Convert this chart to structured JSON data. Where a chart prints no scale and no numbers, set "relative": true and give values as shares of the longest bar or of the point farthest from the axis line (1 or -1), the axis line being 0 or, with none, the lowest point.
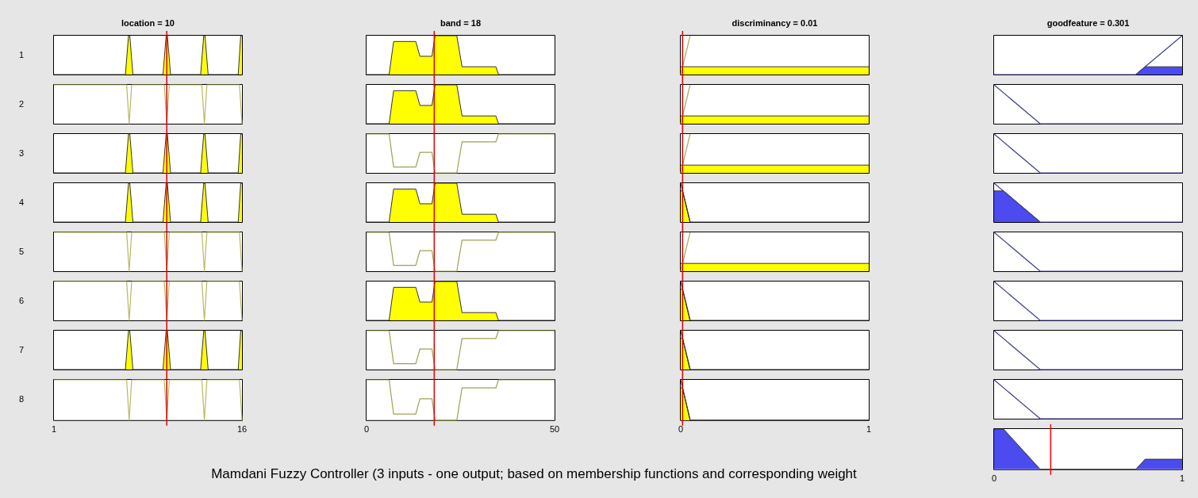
{
  "chart_data": [
    {
      "type": "area",
      "title": "location = 10",
      "ylabel": "1",
      "relative": true,
      "xlim": [
        1,
        16
      ],
      "xticks": [
        1,
        16
      ],
      "tick_labels": false,
      "ref_lines": [
        {
          "axis": "x",
          "value": 10,
          "color": "#e00000"
        }
      ],
      "series": [
        {
          "type": "area",
          "color": "#ffff00",
          "x": [
            1,
            6.7,
            6.95,
            7.05,
            7.3,
            9.7,
            9.95,
            10.05,
            10.3,
            12.7,
            12.95,
            13.05,
            13.3,
            15.7,
            15.9,
            16
          ],
          "values": [
            0,
            0,
            1,
            1,
            0,
            0,
            1,
            1,
            0,
            0,
            1,
            1,
            0,
            0,
            1,
            1
          ]
        }
      ]
    },
    {
      "type": "area",
      "title": "band = 18",
      "relative": true,
      "xlim": [
        0,
        50
      ],
      "xticks": [
        0,
        50
      ],
      "tick_labels": false,
      "ref_lines": [
        {
          "axis": "x",
          "value": 18,
          "color": "#e00000"
        }
      ],
      "series": [
        {
          "type": "area",
          "color": "#ffff00",
          "x": [
            0,
            6,
            7.2,
            13.1,
            14.2,
            17.4,
            18.2,
            24,
            25.4,
            34.4,
            35.1,
            50
          ],
          "values": [
            0,
            0,
            0.85,
            0.85,
            0.47,
            0.47,
            1,
            1,
            0.2,
            0.2,
            0,
            0
          ]
        }
      ]
    },
    {
      "type": "area",
      "title": "discriminancy = 0.01",
      "relative": true,
      "xlim": [
        0,
        1
      ],
      "xticks": [
        0,
        1
      ],
      "tick_labels": false,
      "ref_lines": [
        {
          "axis": "x",
          "value": 0.01,
          "color": "#e00000"
        }
      ],
      "series": [
        {
          "type": "area",
          "color": "#ffff00",
          "x": [
            0,
            1
          ],
          "values": [
            0.2,
            0.2
          ]
        },
        {
          "type": "line",
          "color": "#b0a860",
          "x": [
            0,
            0.05
          ],
          "values": [
            0,
            1
          ]
        }
      ]
    },
    {
      "type": "area",
      "title": "goodfeature = 0.301",
      "relative": true,
      "xlim": [
        0,
        1
      ],
      "xticks": [
        0,
        1
      ],
      "tick_labels": false,
      "series": [
        {
          "type": "line",
          "color": "#404090",
          "x": [
            0,
            0.754,
            1
          ],
          "values": [
            0,
            0,
            1
          ]
        },
        {
          "type": "area",
          "color": "#4b4bf0",
          "x": [
            0.754,
            0.803,
            1
          ],
          "values": [
            0,
            0.2,
            0.2
          ]
        }
      ]
    },
    {
      "type": "area",
      "ylabel": "2",
      "relative": true,
      "xlim": [
        1,
        16
      ],
      "xticks": [
        1,
        16
      ],
      "tick_labels": false,
      "ref_lines": [
        {
          "axis": "x",
          "value": 10,
          "color": "#e00000"
        }
      ],
      "series": [
        {
          "type": "line",
          "color": "#b8b860",
          "x": [
            1,
            6.8,
            7,
            7.2,
            9.8,
            10,
            10.2,
            12.8,
            13,
            13.2,
            15.8,
            16
          ],
          "values": [
            1,
            1,
            0,
            1,
            1,
            0,
            1,
            1,
            0,
            1,
            1,
            0
          ]
        }
      ]
    },
    {
      "type": "area",
      "relative": true,
      "xlim": [
        0,
        50
      ],
      "xticks": [
        0,
        50
      ],
      "tick_labels": false,
      "ref_lines": [
        {
          "axis": "x",
          "value": 18,
          "color": "#e00000"
        }
      ],
      "series": [
        {
          "type": "area",
          "color": "#ffff00",
          "x": [
            0,
            6,
            7.2,
            13.1,
            14.2,
            17.4,
            18.2,
            24,
            25.4,
            34.4,
            35.1,
            50
          ],
          "values": [
            0,
            0,
            0.85,
            0.85,
            0.47,
            0.47,
            1,
            1,
            0.2,
            0.2,
            0,
            0
          ]
        }
      ]
    },
    {
      "type": "area",
      "relative": true,
      "xlim": [
        0,
        1
      ],
      "xticks": [
        0,
        1
      ],
      "tick_labels": false,
      "ref_lines": [
        {
          "axis": "x",
          "value": 0.01,
          "color": "#e00000"
        }
      ],
      "series": [
        {
          "type": "area",
          "color": "#ffff00",
          "x": [
            0,
            1
          ],
          "values": [
            0.2,
            0.2
          ]
        },
        {
          "type": "line",
          "color": "#b0a860",
          "x": [
            0,
            0.05
          ],
          "values": [
            0,
            1
          ]
        }
      ]
    },
    {
      "type": "area",
      "relative": true,
      "xlim": [
        0,
        1
      ],
      "xticks": [
        0,
        1
      ],
      "tick_labels": false,
      "series": [
        {
          "type": "line",
          "color": "#404090",
          "x": [
            0,
            0.245,
            1
          ],
          "values": [
            1,
            0,
            0
          ]
        }
      ]
    },
    {
      "type": "area",
      "ylabel": "3",
      "relative": true,
      "xlim": [
        1,
        16
      ],
      "xticks": [
        1,
        16
      ],
      "tick_labels": false,
      "ref_lines": [
        {
          "axis": "x",
          "value": 10,
          "color": "#e00000"
        }
      ],
      "series": [
        {
          "type": "area",
          "color": "#ffff00",
          "x": [
            1,
            6.7,
            6.95,
            7.05,
            7.3,
            9.7,
            9.95,
            10.05,
            10.3,
            12.7,
            12.95,
            13.05,
            13.3,
            15.7,
            15.9,
            16
          ],
          "values": [
            0,
            0,
            1,
            1,
            0,
            0,
            1,
            1,
            0,
            0,
            1,
            1,
            0,
            0,
            1,
            1
          ]
        }
      ]
    },
    {
      "type": "area",
      "relative": true,
      "xlim": [
        0,
        50
      ],
      "xticks": [
        0,
        50
      ],
      "tick_labels": false,
      "ref_lines": [
        {
          "axis": "x",
          "value": 18,
          "color": "#e00000"
        }
      ],
      "series": [
        {
          "type": "line",
          "color": "#a0a050",
          "x": [
            0,
            6,
            7.2,
            13.1,
            14.2,
            17.4,
            18.2,
            24,
            25.4,
            34.4,
            35.1,
            50
          ],
          "values": [
            1,
            1,
            0.15,
            0.15,
            0.53,
            0.53,
            0,
            0,
            0.8,
            0.8,
            1,
            1
          ]
        }
      ]
    },
    {
      "type": "area",
      "relative": true,
      "xlim": [
        0,
        1
      ],
      "xticks": [
        0,
        1
      ],
      "tick_labels": false,
      "ref_lines": [
        {
          "axis": "x",
          "value": 0.01,
          "color": "#e00000"
        }
      ],
      "series": [
        {
          "type": "area",
          "color": "#ffff00",
          "x": [
            0,
            1
          ],
          "values": [
            0.2,
            0.2
          ]
        },
        {
          "type": "line",
          "color": "#b0a860",
          "x": [
            0,
            0.05
          ],
          "values": [
            0,
            1
          ]
        }
      ]
    },
    {
      "type": "area",
      "relative": true,
      "xlim": [
        0,
        1
      ],
      "xticks": [
        0,
        1
      ],
      "tick_labels": false,
      "series": [
        {
          "type": "line",
          "color": "#404090",
          "x": [
            0,
            0.245,
            1
          ],
          "values": [
            1,
            0,
            0
          ]
        }
      ]
    },
    {
      "type": "area",
      "ylabel": "4",
      "relative": true,
      "xlim": [
        1,
        16
      ],
      "xticks": [
        1,
        16
      ],
      "tick_labels": false,
      "ref_lines": [
        {
          "axis": "x",
          "value": 10,
          "color": "#e00000"
        }
      ],
      "series": [
        {
          "type": "area",
          "color": "#ffff00",
          "x": [
            1,
            6.7,
            6.95,
            7.05,
            7.3,
            9.7,
            9.95,
            10.05,
            10.3,
            12.7,
            12.95,
            13.05,
            13.3,
            15.7,
            15.9,
            16
          ],
          "values": [
            0,
            0,
            1,
            1,
            0,
            0,
            1,
            1,
            0,
            0,
            1,
            1,
            0,
            0,
            1,
            1
          ]
        }
      ]
    },
    {
      "type": "area",
      "relative": true,
      "xlim": [
        0,
        50
      ],
      "xticks": [
        0,
        50
      ],
      "tick_labels": false,
      "ref_lines": [
        {
          "axis": "x",
          "value": 18,
          "color": "#e00000"
        }
      ],
      "series": [
        {
          "type": "area",
          "color": "#ffff00",
          "x": [
            0,
            6,
            7.2,
            13.1,
            14.2,
            17.4,
            18.2,
            24,
            25.4,
            34.4,
            35.1,
            50
          ],
          "values": [
            0,
            0,
            0.85,
            0.85,
            0.47,
            0.47,
            1,
            1,
            0.2,
            0.2,
            0,
            0
          ]
        }
      ]
    },
    {
      "type": "area",
      "relative": true,
      "xlim": [
        0,
        1
      ],
      "xticks": [
        0,
        1
      ],
      "tick_labels": false,
      "ref_lines": [
        {
          "axis": "x",
          "value": 0.01,
          "color": "#e00000"
        }
      ],
      "series": [
        {
          "type": "line",
          "color": "#303030",
          "x": [
            0,
            0.05,
            1
          ],
          "values": [
            1,
            0,
            0
          ]
        },
        {
          "type": "area",
          "color": "#ffff00",
          "x": [
            0,
            0.01,
            0.05
          ],
          "values": [
            0.8,
            0.8,
            0
          ]
        }
      ]
    },
    {
      "type": "area",
      "relative": true,
      "xlim": [
        0,
        1
      ],
      "xticks": [
        0,
        1
      ],
      "tick_labels": false,
      "series": [
        {
          "type": "line",
          "color": "#404090",
          "x": [
            0,
            0.245,
            1
          ],
          "values": [
            1,
            0,
            0
          ]
        },
        {
          "type": "area",
          "color": "#4b4bf0",
          "x": [
            0,
            0.05,
            0.245
          ],
          "values": [
            0.8,
            0.8,
            0
          ]
        }
      ]
    },
    {
      "type": "area",
      "ylabel": "5",
      "relative": true,
      "xlim": [
        1,
        16
      ],
      "xticks": [
        1,
        16
      ],
      "tick_labels": false,
      "ref_lines": [
        {
          "axis": "x",
          "value": 10,
          "color": "#e00000"
        }
      ],
      "series": [
        {
          "type": "line",
          "color": "#b8b860",
          "x": [
            1,
            6.8,
            7,
            7.2,
            9.8,
            10,
            10.2,
            12.8,
            13,
            13.2,
            15.8,
            16
          ],
          "values": [
            1,
            1,
            0,
            1,
            1,
            0,
            1,
            1,
            0,
            1,
            1,
            0
          ]
        }
      ]
    },
    {
      "type": "area",
      "relative": true,
      "xlim": [
        0,
        50
      ],
      "xticks": [
        0,
        50
      ],
      "tick_labels": false,
      "ref_lines": [
        {
          "axis": "x",
          "value": 18,
          "color": "#e00000"
        }
      ],
      "series": [
        {
          "type": "line",
          "color": "#a0a050",
          "x": [
            0,
            6,
            7.2,
            13.1,
            14.2,
            17.4,
            18.2,
            24,
            25.4,
            34.4,
            35.1,
            50
          ],
          "values": [
            1,
            1,
            0.15,
            0.15,
            0.53,
            0.53,
            0,
            0,
            0.8,
            0.8,
            1,
            1
          ]
        }
      ]
    },
    {
      "type": "area",
      "relative": true,
      "xlim": [
        0,
        1
      ],
      "xticks": [
        0,
        1
      ],
      "tick_labels": false,
      "ref_lines": [
        {
          "axis": "x",
          "value": 0.01,
          "color": "#e00000"
        }
      ],
      "series": [
        {
          "type": "area",
          "color": "#ffff00",
          "x": [
            0,
            1
          ],
          "values": [
            0.2,
            0.2
          ]
        },
        {
          "type": "line",
          "color": "#b0a860",
          "x": [
            0,
            0.05
          ],
          "values": [
            0,
            1
          ]
        }
      ]
    },
    {
      "type": "area",
      "relative": true,
      "xlim": [
        0,
        1
      ],
      "xticks": [
        0,
        1
      ],
      "tick_labels": false,
      "series": [
        {
          "type": "line",
          "color": "#404090",
          "x": [
            0,
            0.245,
            1
          ],
          "values": [
            1,
            0,
            0
          ]
        }
      ]
    },
    {
      "type": "area",
      "ylabel": "6",
      "relative": true,
      "xlim": [
        1,
        16
      ],
      "xticks": [
        1,
        16
      ],
      "tick_labels": false,
      "ref_lines": [
        {
          "axis": "x",
          "value": 10,
          "color": "#e00000"
        }
      ],
      "series": [
        {
          "type": "line",
          "color": "#b8b860",
          "x": [
            1,
            6.8,
            7,
            7.2,
            9.8,
            10,
            10.2,
            12.8,
            13,
            13.2,
            15.8,
            16
          ],
          "values": [
            1,
            1,
            0,
            1,
            1,
            0,
            1,
            1,
            0,
            1,
            1,
            0
          ]
        }
      ]
    },
    {
      "type": "area",
      "relative": true,
      "xlim": [
        0,
        50
      ],
      "xticks": [
        0,
        50
      ],
      "tick_labels": false,
      "ref_lines": [
        {
          "axis": "x",
          "value": 18,
          "color": "#e00000"
        }
      ],
      "series": [
        {
          "type": "area",
          "color": "#ffff00",
          "x": [
            0,
            6,
            7.2,
            13.1,
            14.2,
            17.4,
            18.2,
            24,
            25.4,
            34.4,
            35.1,
            50
          ],
          "values": [
            0,
            0,
            0.85,
            0.85,
            0.47,
            0.47,
            1,
            1,
            0.2,
            0.2,
            0,
            0
          ]
        }
      ]
    },
    {
      "type": "area",
      "relative": true,
      "xlim": [
        0,
        1
      ],
      "xticks": [
        0,
        1
      ],
      "tick_labels": false,
      "ref_lines": [
        {
          "axis": "x",
          "value": 0.01,
          "color": "#e00000"
        }
      ],
      "series": [
        {
          "type": "line",
          "color": "#303030",
          "x": [
            0,
            0.05,
            1
          ],
          "values": [
            1,
            0,
            0
          ]
        },
        {
          "type": "area",
          "color": "#ffff00",
          "x": [
            0,
            0.01,
            0.05
          ],
          "values": [
            0.8,
            0.8,
            0
          ]
        }
      ]
    },
    {
      "type": "area",
      "relative": true,
      "xlim": [
        0,
        1
      ],
      "xticks": [
        0,
        1
      ],
      "tick_labels": false,
      "series": [
        {
          "type": "line",
          "color": "#404090",
          "x": [
            0,
            0.245,
            1
          ],
          "values": [
            1,
            0,
            0
          ]
        }
      ]
    },
    {
      "type": "area",
      "ylabel": "7",
      "relative": true,
      "xlim": [
        1,
        16
      ],
      "xticks": [
        1,
        16
      ],
      "tick_labels": false,
      "ref_lines": [
        {
          "axis": "x",
          "value": 10,
          "color": "#e00000"
        }
      ],
      "series": [
        {
          "type": "area",
          "color": "#ffff00",
          "x": [
            1,
            6.7,
            6.95,
            7.05,
            7.3,
            9.7,
            9.95,
            10.05,
            10.3,
            12.7,
            12.95,
            13.05,
            13.3,
            15.7,
            15.9,
            16
          ],
          "values": [
            0,
            0,
            1,
            1,
            0,
            0,
            1,
            1,
            0,
            0,
            1,
            1,
            0,
            0,
            1,
            1
          ]
        }
      ]
    },
    {
      "type": "area",
      "relative": true,
      "xlim": [
        0,
        50
      ],
      "xticks": [
        0,
        50
      ],
      "tick_labels": false,
      "ref_lines": [
        {
          "axis": "x",
          "value": 18,
          "color": "#e00000"
        }
      ],
      "series": [
        {
          "type": "line",
          "color": "#a0a050",
          "x": [
            0,
            6,
            7.2,
            13.1,
            14.2,
            17.4,
            18.2,
            24,
            25.4,
            34.4,
            35.1,
            50
          ],
          "values": [
            1,
            1,
            0.15,
            0.15,
            0.53,
            0.53,
            0,
            0,
            0.8,
            0.8,
            1,
            1
          ]
        }
      ]
    },
    {
      "type": "area",
      "relative": true,
      "xlim": [
        0,
        1
      ],
      "xticks": [
        0,
        1
      ],
      "tick_labels": false,
      "ref_lines": [
        {
          "axis": "x",
          "value": 0.01,
          "color": "#e00000"
        }
      ],
      "series": [
        {
          "type": "line",
          "color": "#303030",
          "x": [
            0,
            0.05,
            1
          ],
          "values": [
            1,
            0,
            0
          ]
        },
        {
          "type": "area",
          "color": "#ffff00",
          "x": [
            0,
            0.01,
            0.05
          ],
          "values": [
            0.8,
            0.8,
            0
          ]
        }
      ]
    },
    {
      "type": "area",
      "relative": true,
      "xlim": [
        0,
        1
      ],
      "xticks": [
        0,
        1
      ],
      "tick_labels": false,
      "series": [
        {
          "type": "line",
          "color": "#404090",
          "x": [
            0,
            0.245,
            1
          ],
          "values": [
            1,
            0,
            0
          ]
        }
      ]
    },
    {
      "type": "area",
      "ylabel": "8",
      "relative": true,
      "xlim": [
        1,
        16
      ],
      "xticks": [
        1,
        16
      ],
      "tick_labels": "x",
      "ref_lines": [
        {
          "axis": "x",
          "value": 10,
          "color": "#e00000"
        }
      ],
      "series": [
        {
          "type": "line",
          "color": "#b8b860",
          "x": [
            1,
            6.8,
            7,
            7.2,
            9.8,
            10,
            10.2,
            12.8,
            13,
            13.2,
            15.8,
            16
          ],
          "values": [
            1,
            1,
            0,
            1,
            1,
            0,
            1,
            1,
            0,
            1,
            1,
            0
          ]
        }
      ]
    },
    {
      "type": "area",
      "relative": true,
      "xlim": [
        0,
        50
      ],
      "xticks": [
        0,
        50
      ],
      "tick_labels": "x",
      "ref_lines": [
        {
          "axis": "x",
          "value": 18,
          "color": "#e00000"
        }
      ],
      "series": [
        {
          "type": "line",
          "color": "#a0a050",
          "x": [
            0,
            6,
            7.2,
            13.1,
            14.2,
            17.4,
            18.2,
            24,
            25.4,
            34.4,
            35.1,
            50
          ],
          "values": [
            1,
            1,
            0.15,
            0.15,
            0.53,
            0.53,
            0,
            0,
            0.8,
            0.8,
            1,
            1
          ]
        }
      ]
    },
    {
      "type": "area",
      "relative": true,
      "xlim": [
        0,
        1
      ],
      "xticks": [
        0,
        1
      ],
      "tick_labels": "x",
      "ref_lines": [
        {
          "axis": "x",
          "value": 0.01,
          "color": "#e00000"
        }
      ],
      "series": [
        {
          "type": "line",
          "color": "#303030",
          "x": [
            0,
            0.05,
            1
          ],
          "values": [
            1,
            0,
            0
          ]
        },
        {
          "type": "area",
          "color": "#ffff00",
          "x": [
            0,
            0.01,
            0.05
          ],
          "values": [
            0.8,
            0.8,
            0
          ]
        }
      ]
    },
    {
      "type": "area",
      "relative": true,
      "xlim": [
        0,
        1
      ],
      "xticks": [
        0,
        1
      ],
      "tick_labels": false,
      "series": [
        {
          "type": "line",
          "color": "#404090",
          "x": [
            0,
            0.245,
            1
          ],
          "values": [
            1,
            0,
            0
          ]
        }
      ]
    },
    {
      "type": "area",
      "relative": true,
      "xlim": [
        0,
        1
      ],
      "xticks": [
        0,
        1
      ],
      "tick_labels": "x",
      "ref_lines": [
        {
          "axis": "x",
          "value": 0.301,
          "color": "#ff0000"
        }
      ],
      "series": [
        {
          "type": "area",
          "color": "#4b4bf0",
          "x": [
            0,
            0.05,
            0.245,
            0.754,
            0.803,
            1
          ],
          "values": [
            1,
            1,
            0,
            0,
            0.25,
            0.25
          ]
        }
      ]
    },
    {
      "type": "other",
      "annotations": [
        "Mamdani Fuzzy Controller (3 inputs - one output; based on membership functions and corresponding weight"
      ]
    }
  ]
}
